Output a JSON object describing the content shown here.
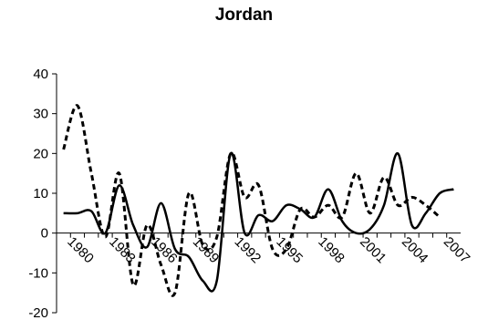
{
  "chart_data": {
    "type": "line",
    "title": "Jordan",
    "xlabel": "",
    "ylabel": "",
    "ylim": [
      -20,
      40
    ],
    "yticks": [
      -20,
      -10,
      0,
      10,
      20,
      30,
      40
    ],
    "xlim": [
      1978.5,
      2007.5
    ],
    "xticks": [
      1980,
      1983,
      1986,
      1989,
      1992,
      1995,
      1998,
      2001,
      2004,
      2007
    ],
    "xtick_labels": [
      "1980",
      "1983",
      "1986",
      "1989",
      "1992",
      "1995",
      "1998",
      "2001",
      "2004",
      "2007"
    ],
    "grid": false,
    "legend": "none",
    "x": [
      1979,
      1980,
      1981,
      1982,
      1983,
      1984,
      1985,
      1986,
      1987,
      1988,
      1989,
      1990,
      1991,
      1992,
      1993,
      1994,
      1995,
      1996,
      1997,
      1998,
      1999,
      2000,
      2001,
      2002,
      2003,
      2004,
      2005,
      2006,
      2007
    ],
    "series": [
      {
        "style": "solid",
        "color": "#000000",
        "values": [
          5,
          5,
          5.5,
          0,
          12,
          2,
          -3.5,
          7.5,
          -4,
          -6,
          -12,
          -12,
          20,
          0,
          4.5,
          3,
          7,
          6,
          4,
          11,
          3,
          0,
          1,
          7,
          20,
          2,
          5,
          10,
          11
        ]
      },
      {
        "style": "dashed",
        "color": "#000000",
        "values": [
          21,
          32,
          15,
          -1,
          15,
          -13,
          2,
          -8,
          -15,
          10,
          -3,
          -1,
          20,
          9,
          12,
          -4,
          -4,
          6,
          4,
          7,
          4,
          15,
          5,
          14,
          7,
          9,
          7,
          4,
          null
        ]
      }
    ]
  }
}
